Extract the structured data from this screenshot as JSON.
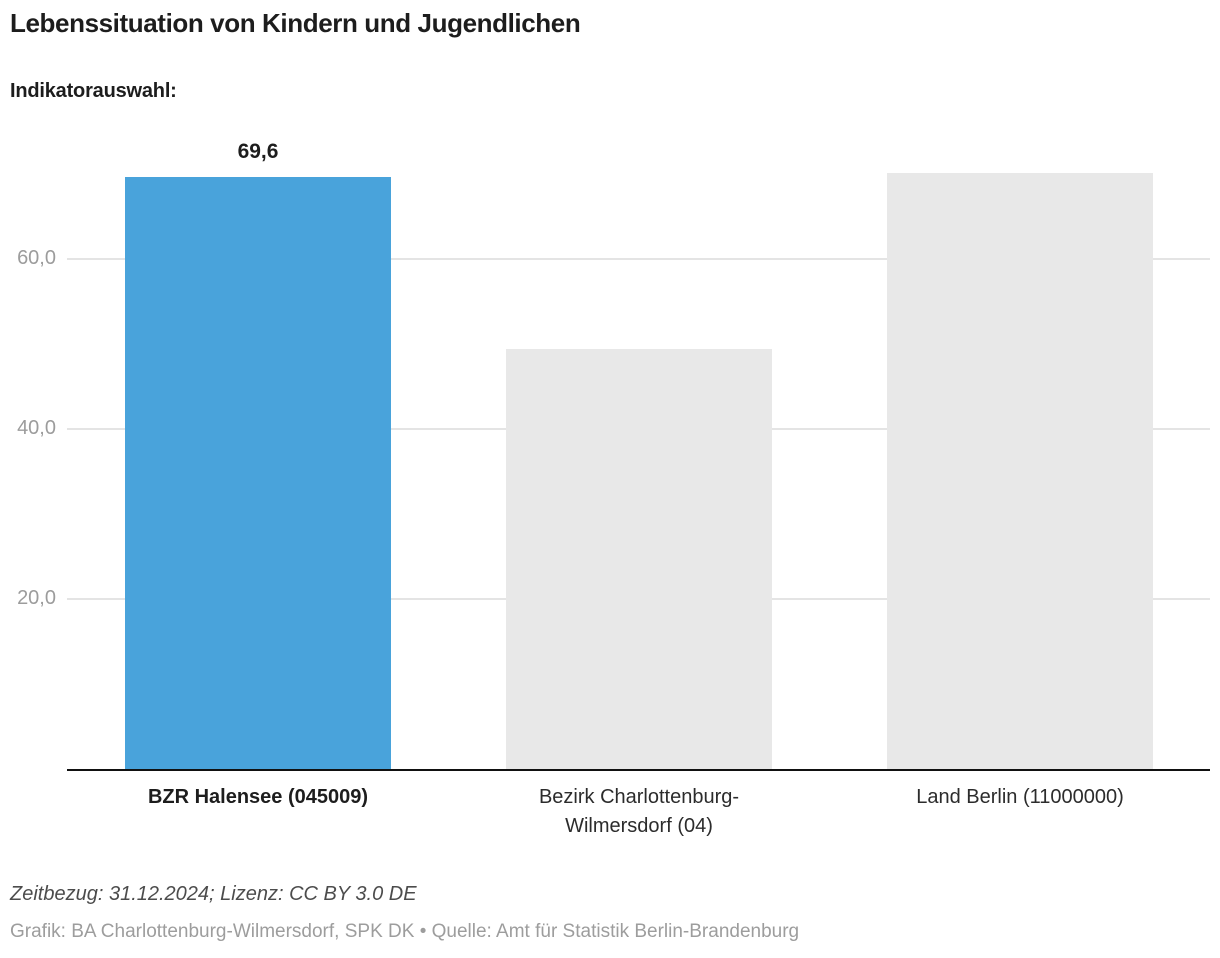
{
  "header": {
    "title": "Lebenssituation von Kindern und Jugendlichen",
    "indicator_label": "Indikatorauswahl:"
  },
  "chart_data": {
    "type": "bar",
    "title": "Lebenssituation von Kindern und Jugendlichen",
    "categories": [
      "BZR Halensee (045009)",
      "Bezirk Charlottenburg-Wilmersdorf (04)",
      "Land Berlin (11000000)"
    ],
    "values": [
      69.6,
      49.4,
      70.1
    ],
    "value_labels": [
      "69,6",
      "",
      ""
    ],
    "highlighted_index": 0,
    "bar_colors": [
      "#49a3db",
      "#e8e8e8",
      "#e8e8e8"
    ],
    "yticks": [
      20,
      40,
      60
    ],
    "ytick_labels": [
      "20,0",
      "40,0",
      "60,0"
    ],
    "ylim": [
      0,
      70.6
    ],
    "grid": true,
    "legend": "none",
    "xlabel": "",
    "ylabel": ""
  },
  "footer": {
    "line1": "Zeitbezug: 31.12.2024; Lizenz: CC BY 3.0 DE",
    "line2": "Grafik: BA Charlottenburg-Wilmersdorf, SPK DK • Quelle: Amt für Statistik Berlin-Brandenburg"
  },
  "colors": {
    "accent_blue": "#49a3db",
    "neutral_bar": "#e8e8e8",
    "gridline": "#e4e4e4",
    "axis": "#111111",
    "ytick_text": "#9c9c9c",
    "title_text": "#1d1d1d"
  }
}
